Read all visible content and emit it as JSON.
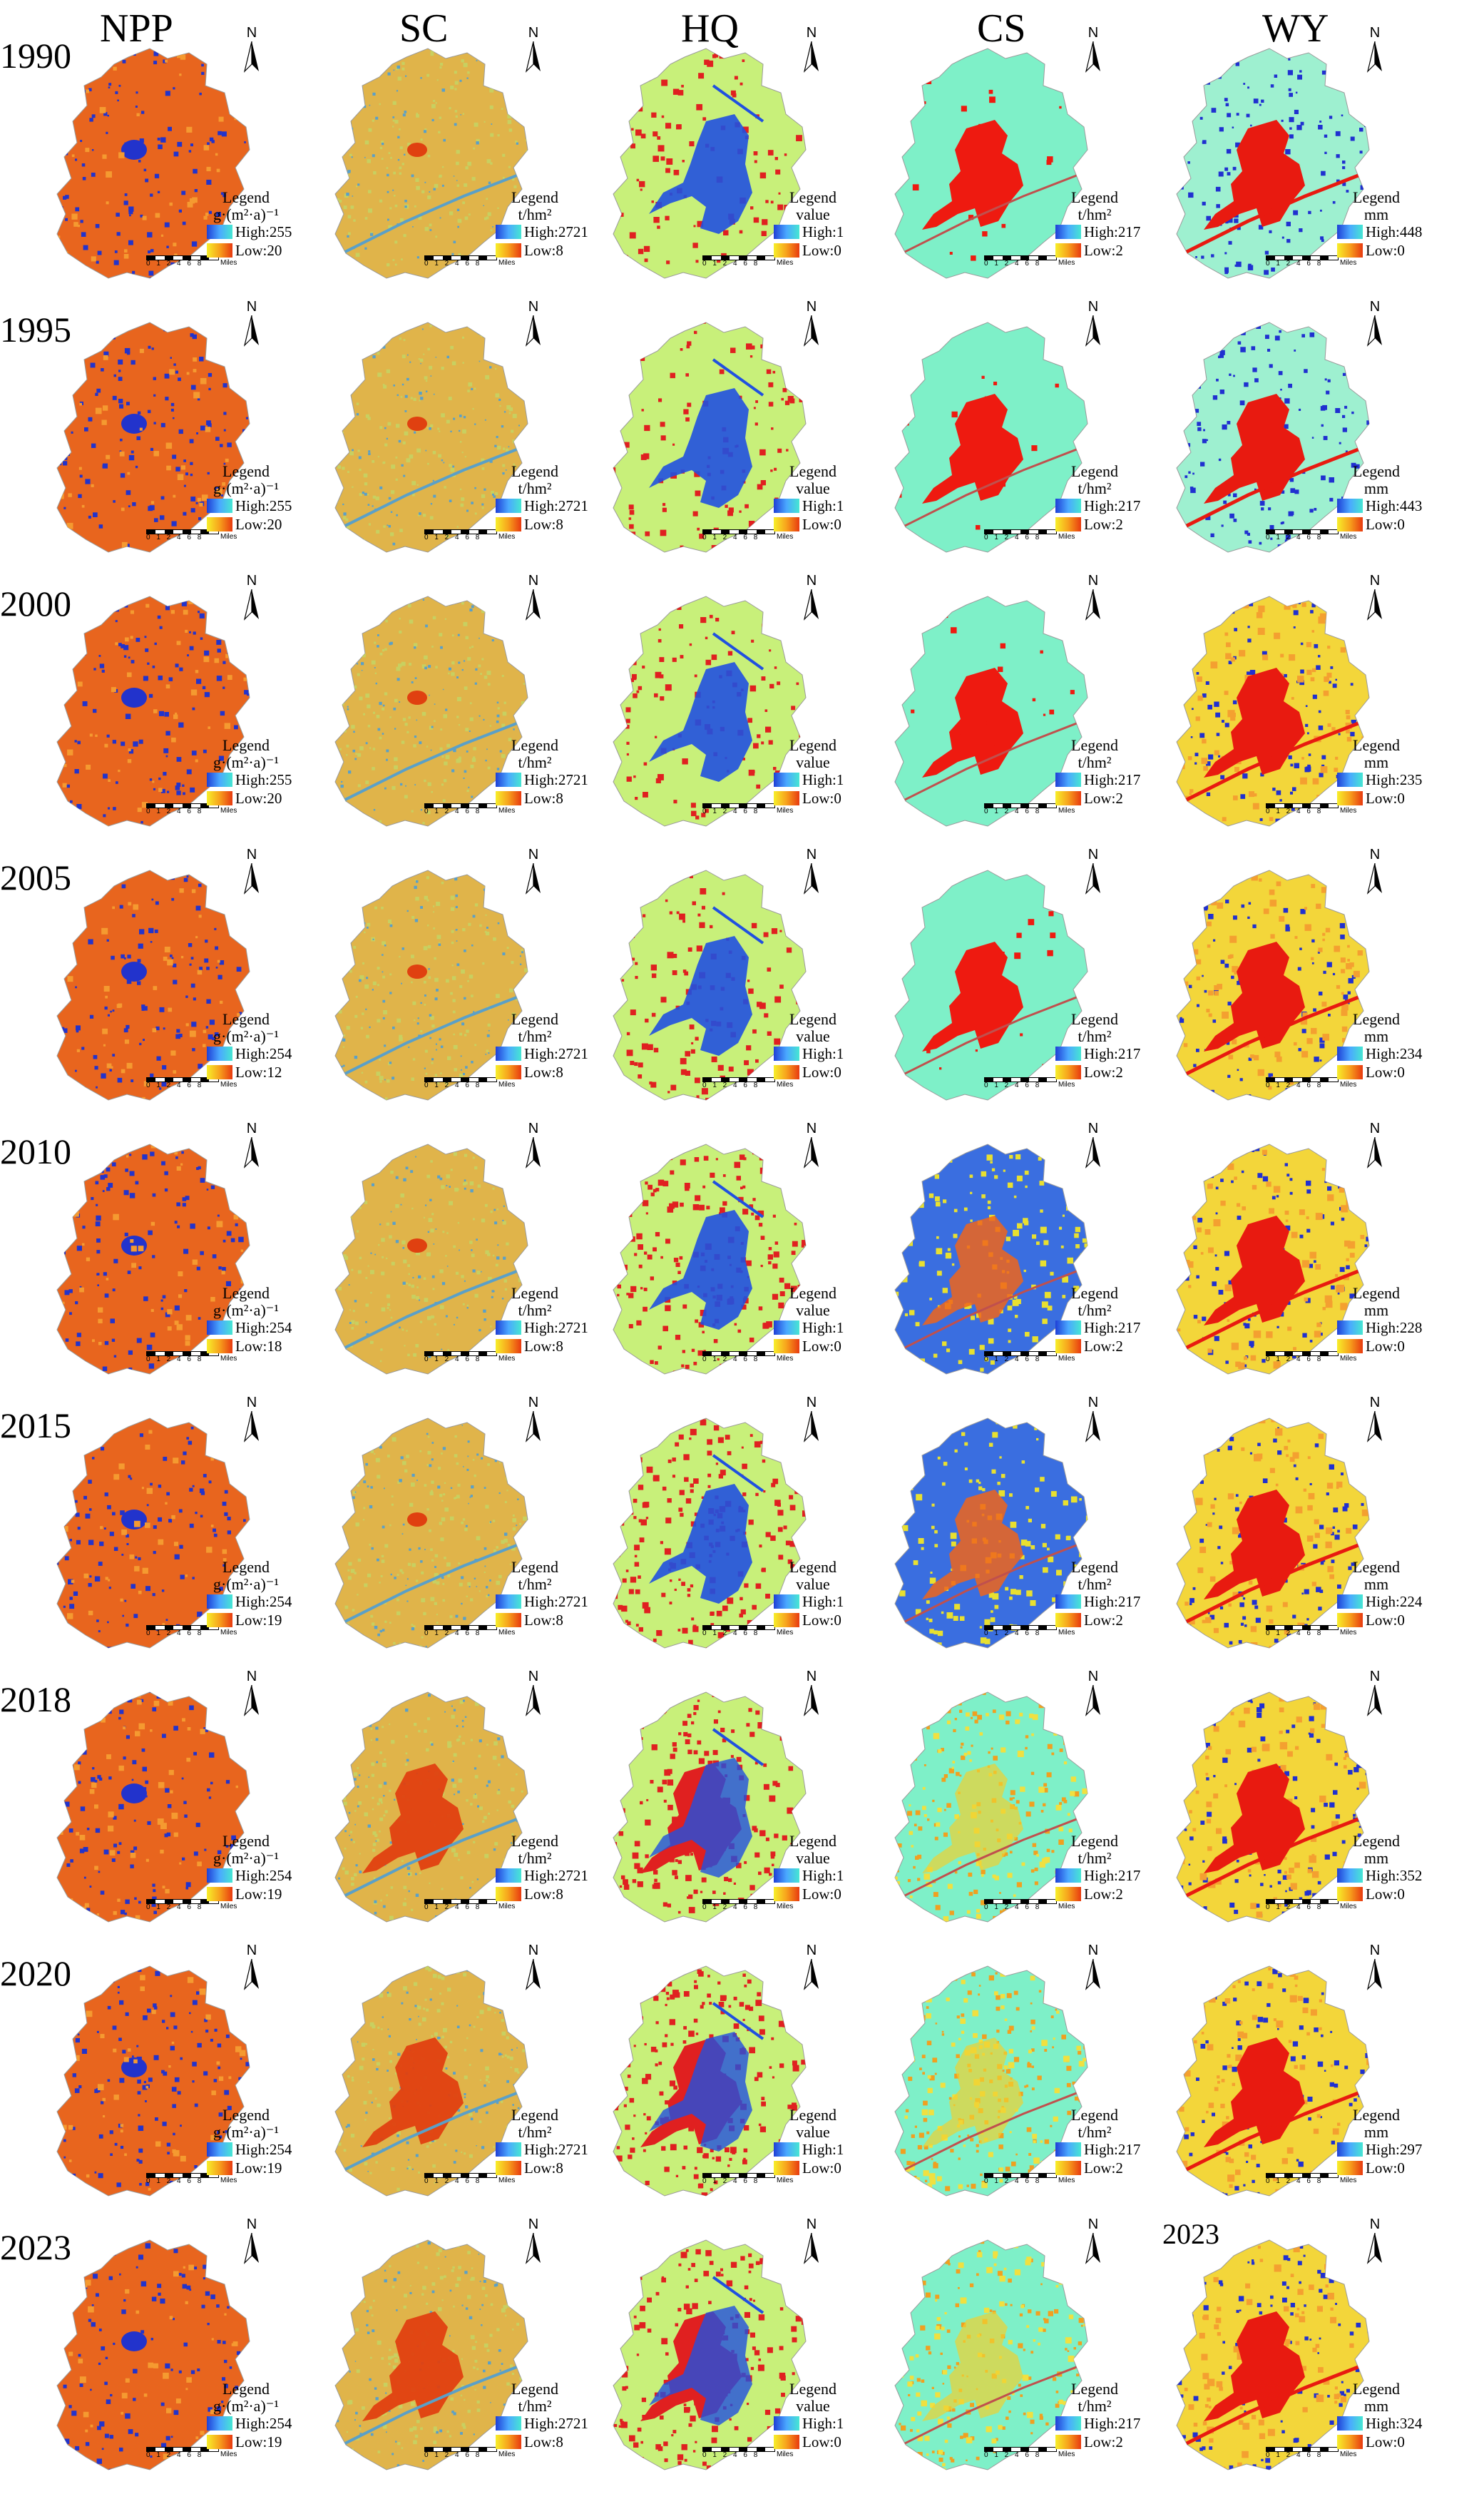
{
  "column_headers": [
    "NPP",
    "SC",
    "HQ",
    "CS",
    "WY"
  ],
  "years": [
    "1990",
    "1995",
    "2000",
    "2005",
    "2010",
    "2015",
    "2018",
    "2020",
    "2023"
  ],
  "inset_year_label": "2023",
  "north_label": "N",
  "scale_bar": {
    "ticks": "0 1 2  4  6  8",
    "unit": "Miles"
  },
  "legend_word": "Legend",
  "units": {
    "NPP": "g·(m²·a)⁻¹",
    "SC": "t/hm²",
    "HQ": "value",
    "CS": "t/hm²",
    "WY": "mm"
  },
  "legend_values": {
    "NPP": [
      [
        "High:255",
        "Low:20"
      ],
      [
        "High:255",
        "Low:20"
      ],
      [
        "High:255",
        "Low:20"
      ],
      [
        "High:254",
        "Low:12"
      ],
      [
        "High:254",
        "Low:18"
      ],
      [
        "High:254",
        "Low:19"
      ],
      [
        "High:254",
        "Low:19"
      ],
      [
        "High:254",
        "Low:19"
      ],
      [
        "High:254",
        "Low:19"
      ]
    ],
    "SC": [
      [
        "High:2721",
        "Low:8"
      ],
      [
        "High:2721",
        "Low:8"
      ],
      [
        "High:2721",
        "Low:8"
      ],
      [
        "High:2721",
        "Low:8"
      ],
      [
        "High:2721",
        "Low:8"
      ],
      [
        "High:2721",
        "Low:8"
      ],
      [
        "High:2721",
        "Low:8"
      ],
      [
        "High:2721",
        "Low:8"
      ],
      [
        "High:2721",
        "Low:8"
      ]
    ],
    "HQ": [
      [
        "High:1",
        "Low:0"
      ],
      [
        "High:1",
        "Low:0"
      ],
      [
        "High:1",
        "Low:0"
      ],
      [
        "High:1",
        "Low:0"
      ],
      [
        "High:1",
        "Low:0"
      ],
      [
        "High:1",
        "Low:0"
      ],
      [
        "High:1",
        "Low:0"
      ],
      [
        "High:1",
        "Low:0"
      ],
      [
        "High:1",
        "Low:0"
      ]
    ],
    "CS": [
      [
        "High:217",
        "Low:2"
      ],
      [
        "High:217",
        "Low:2"
      ],
      [
        "High:217",
        "Low:2"
      ],
      [
        "High:217",
        "Low:2"
      ],
      [
        "High:217",
        "Low:2"
      ],
      [
        "High:217",
        "Low:2"
      ],
      [
        "High:217",
        "Low:2"
      ],
      [
        "High:217",
        "Low:2"
      ],
      [
        "High:217",
        "Low:2"
      ]
    ],
    "WY": [
      [
        "High:448",
        "Low:0"
      ],
      [
        "High:443",
        "Low:0"
      ],
      [
        "High:235",
        "Low:0"
      ],
      [
        "High:234",
        "Low:0"
      ],
      [
        "High:228",
        "Low:0"
      ],
      [
        "High:224",
        "Low:0"
      ],
      [
        "High:352",
        "Low:0"
      ],
      [
        "High:297",
        "Low:0"
      ],
      [
        "High:324",
        "Low:0"
      ]
    ]
  },
  "colors": {
    "legend_high_ramp": [
      "#1f3fd6",
      "#4aa8ff",
      "#46e6d2"
    ],
    "legend_low_ramp": [
      "#f7ef2a",
      "#f7a11c",
      "#e83a10"
    ],
    "npp_fill": "#e8651e",
    "npp_patch": "#2233cc",
    "sc_fill": "#e0b44a",
    "sc_water": "#5aa0c8",
    "sc_core": "#e04010",
    "hq_fill": "#c8f07a",
    "hq_built": "#e02020",
    "hq_water": "#2050e0",
    "cs_fill": "#7ef0c8",
    "cs_fill_alt": "#3a6ee0",
    "cs_built": "#ee1a10",
    "wy_fill": "#f3d63a",
    "wy_fill_early": "#9ef0d0",
    "wy_built": "#e81a10",
    "wy_patch": "#2030d0"
  }
}
